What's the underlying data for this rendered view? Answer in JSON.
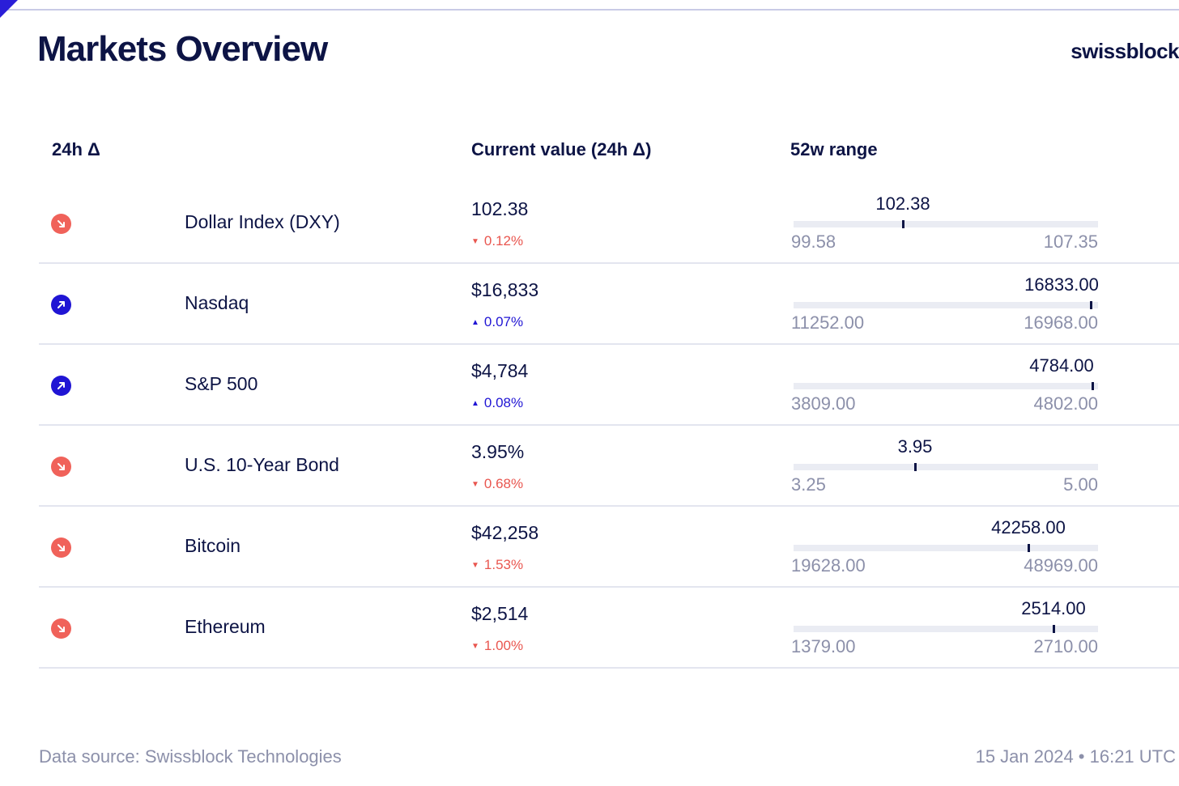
{
  "header": {
    "title": "Markets Overview",
    "logo": "swissblock"
  },
  "columns": {
    "change": "24h Δ",
    "current_value": "Current value (24h Δ)",
    "range": "52w range"
  },
  "rows": [
    {
      "name": "Dollar Index (DXY)",
      "direction": "down",
      "value": "102.38",
      "change": "0.12%",
      "marker_label": "102.38",
      "marker_value": 102.38,
      "min_label": "99.58",
      "min": 99.58,
      "max_label": "107.35",
      "max": 107.35
    },
    {
      "name": "Nasdaq",
      "direction": "up",
      "value": "$16,833",
      "change": "0.07%",
      "marker_label": "16833.00",
      "marker_value": 16833.0,
      "min_label": "11252.00",
      "min": 11252.0,
      "max_label": "16968.00",
      "max": 16968.0
    },
    {
      "name": "S&P 500",
      "direction": "up",
      "value": "$4,784",
      "change": "0.08%",
      "marker_label": "4784.00",
      "marker_value": 4784.0,
      "min_label": "3809.00",
      "min": 3809.0,
      "max_label": "4802.00",
      "max": 4802.0
    },
    {
      "name": "U.S. 10-Year Bond",
      "direction": "down",
      "value": "3.95%",
      "change": "0.68%",
      "marker_label": "3.95",
      "marker_value": 3.95,
      "min_label": "3.25",
      "min": 3.25,
      "max_label": "5.00",
      "max": 5.0
    },
    {
      "name": "Bitcoin",
      "direction": "down",
      "value": "$42,258",
      "change": "1.53%",
      "marker_label": "42258.00",
      "marker_value": 42258.0,
      "min_label": "19628.00",
      "min": 19628.0,
      "max_label": "48969.00",
      "max": 48969.0
    },
    {
      "name": "Ethereum",
      "direction": "down",
      "value": "$2,514",
      "change": "1.00%",
      "marker_label": "2514.00",
      "marker_value": 2514.0,
      "min_label": "1379.00",
      "min": 1379.0,
      "max_label": "2710.00",
      "max": 2710.0
    }
  ],
  "footer": {
    "source": "Data source: Swissblock Technologies",
    "timestamp": "15 Jan 2024 • 16:21 UTC"
  },
  "colors": {
    "down": "#f0625a",
    "up": "#2015d4",
    "text": "#0d1445",
    "muted": "#8c90aa"
  },
  "icons": {
    "down": "arrow-down-right-icon",
    "up": "arrow-up-right-icon"
  }
}
